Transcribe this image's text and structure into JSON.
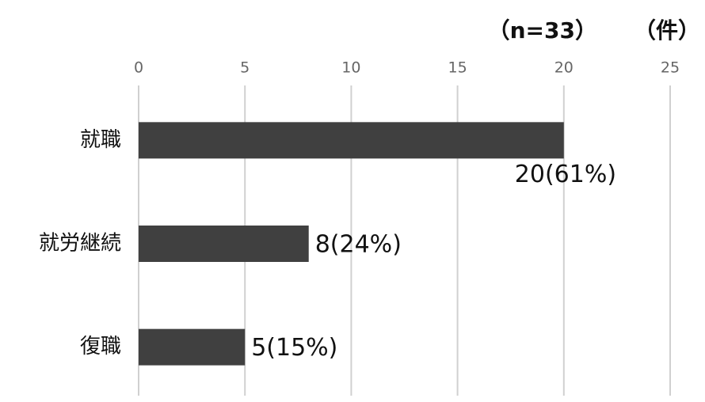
{
  "chart_data": {
    "type": "barh",
    "note": "（n=33）",
    "unit_label": "（件）",
    "categories": [
      "就職",
      "就労継続",
      "復職"
    ],
    "values": [
      20,
      8,
      5
    ],
    "value_labels": [
      "20(61%)",
      "8(24%)",
      "5(15%)"
    ],
    "color": "#404040",
    "xlim": [
      0,
      25
    ],
    "xticks": [
      0,
      5,
      10,
      15,
      20,
      25
    ],
    "grid": true
  }
}
